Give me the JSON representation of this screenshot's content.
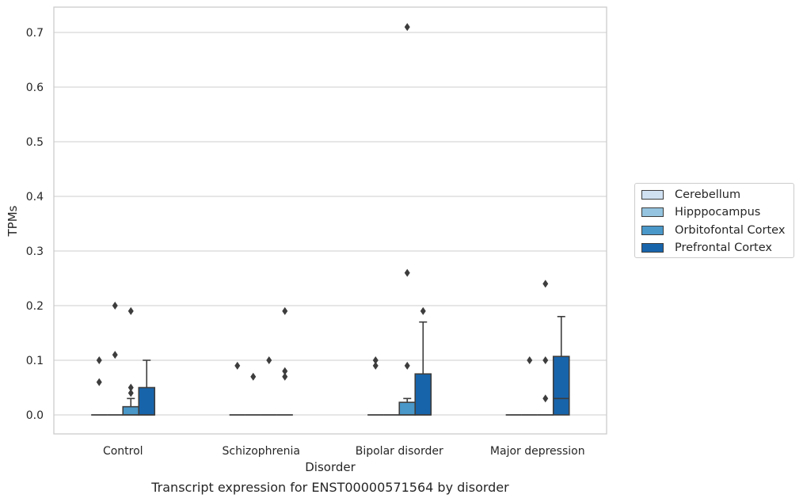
{
  "caption": "Transcript expression for ENST00000571564 by disorder",
  "chart_data": {
    "type": "box",
    "title": "",
    "xlabel": "Disorder",
    "ylabel": "TPMs",
    "categories": [
      "Control",
      "Schizophrenia",
      "Bipolar disorder",
      "Major depression"
    ],
    "ylim": [
      -0.035,
      0.745
    ],
    "yticks": [
      0.0,
      0.1,
      0.2,
      0.3,
      0.4,
      0.5,
      0.6,
      0.7
    ],
    "ytick_labels": [
      "0.0",
      "0.1",
      "0.2",
      "0.3",
      "0.4",
      "0.5",
      "0.6",
      "0.7"
    ],
    "grid": "horizontal",
    "legend_position": "right",
    "series": [
      {
        "name": "Cerebellum",
        "color": "#d0e1f2",
        "boxes": [
          {
            "q1": 0,
            "median": 0,
            "q3": 0,
            "whisker_low": 0,
            "whisker_high": 0,
            "outliers": [
              0.06,
              0.1
            ]
          },
          {
            "q1": 0,
            "median": 0,
            "q3": 0,
            "whisker_low": 0,
            "whisker_high": 0,
            "outliers": [
              0.09
            ]
          },
          {
            "q1": 0,
            "median": 0,
            "q3": 0,
            "whisker_low": 0,
            "whisker_high": 0,
            "outliers": [
              0.09,
              0.1
            ]
          },
          {
            "q1": 0,
            "median": 0,
            "q3": 0,
            "whisker_low": 0,
            "whisker_high": 0,
            "outliers": []
          }
        ]
      },
      {
        "name": "Hipppocampus",
        "color": "#94c4df",
        "boxes": [
          {
            "q1": 0,
            "median": 0,
            "q3": 0,
            "whisker_low": 0,
            "whisker_high": 0,
            "outliers": [
              0.11,
              0.2
            ]
          },
          {
            "q1": 0,
            "median": 0,
            "q3": 0,
            "whisker_low": 0,
            "whisker_high": 0,
            "outliers": [
              0.07
            ]
          },
          {
            "q1": 0,
            "median": 0,
            "q3": 0,
            "whisker_low": 0,
            "whisker_high": 0,
            "outliers": []
          },
          {
            "q1": 0,
            "median": 0,
            "q3": 0,
            "whisker_low": 0,
            "whisker_high": 0,
            "outliers": [
              0.1
            ]
          }
        ]
      },
      {
        "name": "Orbitofontal Cortex",
        "color": "#4a98c9",
        "boxes": [
          {
            "q1": 0,
            "median": 0,
            "q3": 0.015,
            "whisker_low": 0,
            "whisker_high": 0.03,
            "outliers": [
              0.04,
              0.05,
              0.19
            ]
          },
          {
            "q1": 0,
            "median": 0,
            "q3": 0,
            "whisker_low": 0,
            "whisker_high": 0,
            "outliers": [
              0.1
            ]
          },
          {
            "q1": 0,
            "median": 0,
            "q3": 0.023,
            "whisker_low": 0,
            "whisker_high": 0.03,
            "outliers": [
              0.09,
              0.26,
              0.71
            ]
          },
          {
            "q1": 0,
            "median": 0,
            "q3": 0,
            "whisker_low": 0,
            "whisker_high": 0,
            "outliers": [
              0.03,
              0.1,
              0.24
            ]
          }
        ]
      },
      {
        "name": "Prefrontal Cortex",
        "color": "#1764ab",
        "boxes": [
          {
            "q1": 0,
            "median": 0,
            "q3": 0.05,
            "whisker_low": 0,
            "whisker_high": 0.1,
            "outliers": []
          },
          {
            "q1": 0,
            "median": 0,
            "q3": 0,
            "whisker_low": 0,
            "whisker_high": 0,
            "outliers": [
              0.07,
              0.08,
              0.19
            ]
          },
          {
            "q1": 0,
            "median": 0,
            "q3": 0.075,
            "whisker_low": 0,
            "whisker_high": 0.17,
            "outliers": [
              0.19
            ]
          },
          {
            "q1": 0,
            "median": 0.03,
            "q3": 0.107,
            "whisker_low": 0,
            "whisker_high": 0.18,
            "outliers": []
          }
        ]
      }
    ]
  }
}
